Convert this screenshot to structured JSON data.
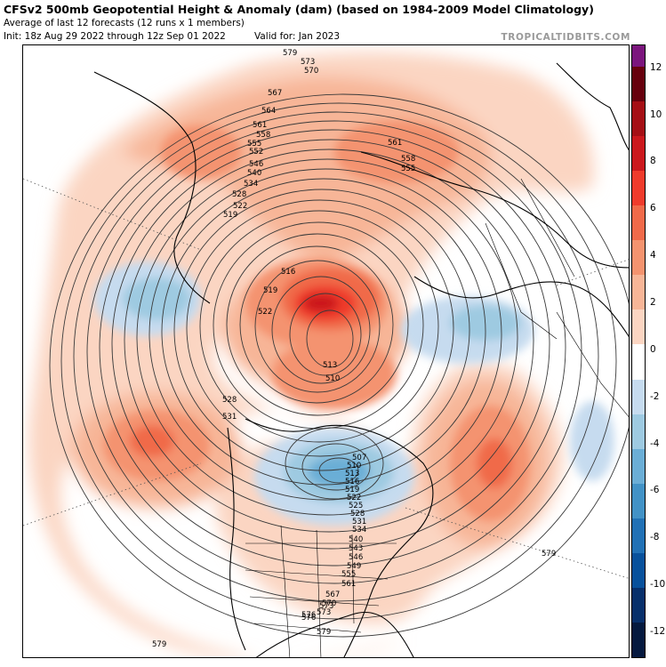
{
  "header": {
    "title": "CFSv2 500mb Geopotential Height & Anomaly (dam) (based on 1984-2009 Model Climatology)",
    "subtitle": "Average of last 12 forecasts (12 runs x 1 members)",
    "init": "Init: 18z Aug 29 2022 through 12z Sep 01 2022",
    "valid": "Valid for: Jan 2023",
    "credit": "TROPICALTIDBITS.COM"
  },
  "colorbar": {
    "ticks": [
      "12",
      "10",
      "8",
      "6",
      "4",
      "2",
      "0",
      "-2",
      "-4",
      "-6",
      "-8",
      "-10",
      "-12"
    ],
    "colors": [
      "#7b157d",
      "#67000d",
      "#a50f15",
      "#cb181d",
      "#ef3b2c",
      "#f06a4a",
      "#f4936f",
      "#f7b597",
      "#fbd5c2",
      "#ffffff",
      "#c6dbef",
      "#9ecae1",
      "#6baed6",
      "#4292c6",
      "#2171b5",
      "#08519c",
      "#08306b",
      "#05193f"
    ]
  },
  "contour_labels": {
    "northwest_ridge": [
      "579",
      "573",
      "570",
      "567",
      "564",
      "561",
      "558",
      "555",
      "552",
      "546",
      "540",
      "534",
      "528",
      "522",
      "519"
    ],
    "siberia": [
      "561",
      "558",
      "555"
    ],
    "arctic_low": [
      "516",
      "519",
      "522",
      "513",
      "510"
    ],
    "pacific": [
      "528",
      "531"
    ],
    "canada_trough": [
      "507",
      "510",
      "513",
      "516",
      "519",
      "522",
      "525",
      "528",
      "531",
      "534",
      "540",
      "543",
      "546",
      "549",
      "555",
      "561",
      "567",
      "570",
      "573",
      "576"
    ],
    "atlantic": [
      "579"
    ],
    "bottom": [
      "579",
      "579",
      "576",
      "573"
    ]
  }
}
